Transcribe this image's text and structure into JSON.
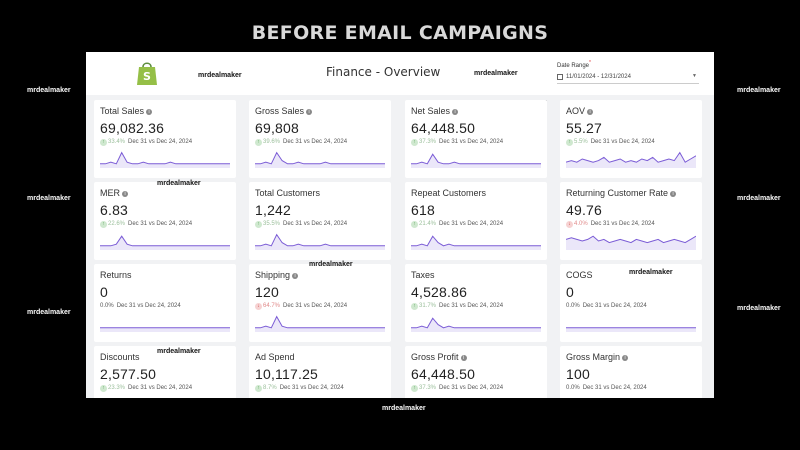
{
  "headline": "BEFORE EMAIL CAMPAIGNS",
  "watermark": "mrdealmaker",
  "dashboard": {
    "title": "Finance - Overview",
    "date_range_label": "Date Range",
    "date_range_required": "*",
    "date_range_value": "11/01/2024 - 12/31/2024",
    "logo_icon": "shopify-bag-icon",
    "accent_color": "#7b5cd6",
    "positive_color": "#4a9a4a",
    "negative_color": "#cc4444"
  },
  "comparison_text": "Dec 31 vs Dec 24, 2024",
  "metrics": [
    {
      "label": "Total Sales",
      "info": true,
      "value": "69,082.36",
      "change": "33.4%",
      "direction": "up",
      "spark": [
        2,
        2,
        3,
        2,
        9,
        3,
        2,
        2,
        3,
        2,
        2,
        2,
        2,
        3,
        2,
        2,
        2,
        2,
        2,
        2,
        2,
        2,
        2,
        2,
        2
      ]
    },
    {
      "label": "Gross Sales",
      "info": true,
      "value": "69,808",
      "change": "39.6%",
      "direction": "up",
      "spark": [
        2,
        2,
        3,
        2,
        9,
        4,
        2,
        2,
        3,
        2,
        2,
        2,
        2,
        3,
        2,
        2,
        2,
        2,
        2,
        2,
        2,
        2,
        2,
        2,
        2
      ]
    },
    {
      "label": "Net Sales",
      "info": true,
      "value": "64,448.50",
      "change": "37.3%",
      "direction": "up",
      "spark": [
        2,
        2,
        3,
        2,
        8,
        3,
        2,
        2,
        3,
        2,
        2,
        2,
        2,
        2,
        2,
        2,
        2,
        2,
        2,
        2,
        2,
        2,
        2,
        2,
        2
      ]
    },
    {
      "label": "AOV",
      "info": true,
      "value": "55.27",
      "change": "5.5%",
      "direction": "up",
      "spark": [
        3,
        4,
        3,
        5,
        4,
        3,
        4,
        6,
        3,
        4,
        5,
        3,
        4,
        3,
        5,
        4,
        6,
        3,
        4,
        5,
        4,
        9,
        3,
        5,
        7
      ]
    },
    {
      "label": "MER",
      "info": true,
      "value": "6.83",
      "change": "22.6%",
      "direction": "up",
      "spark": [
        2,
        2,
        2,
        3,
        8,
        3,
        2,
        2,
        2,
        2,
        2,
        2,
        2,
        2,
        2,
        2,
        2,
        2,
        2,
        2,
        2,
        2,
        2,
        2,
        2
      ]
    },
    {
      "label": "Total Customers",
      "info": false,
      "value": "1,242",
      "change": "35.5%",
      "direction": "up",
      "spark": [
        2,
        2,
        3,
        2,
        9,
        4,
        2,
        2,
        3,
        2,
        2,
        2,
        2,
        3,
        2,
        2,
        2,
        2,
        2,
        2,
        2,
        2,
        2,
        2,
        2
      ]
    },
    {
      "label": "Repeat Customers",
      "info": false,
      "value": "618",
      "change": "21.4%",
      "direction": "up",
      "spark": [
        2,
        2,
        3,
        2,
        8,
        4,
        2,
        3,
        2,
        2,
        2,
        2,
        2,
        2,
        2,
        2,
        2,
        2,
        2,
        2,
        2,
        2,
        2,
        2,
        2
      ]
    },
    {
      "label": "Returning Customer Rate",
      "info": true,
      "value": "49.76",
      "change": "4.0%",
      "direction": "down",
      "spark": [
        6,
        7,
        6,
        5,
        6,
        8,
        5,
        6,
        4,
        5,
        6,
        5,
        4,
        6,
        5,
        4,
        5,
        6,
        4,
        5,
        6,
        5,
        4,
        6,
        8
      ]
    },
    {
      "label": "Returns",
      "info": false,
      "value": "0",
      "change": "0.0%",
      "direction": "flat",
      "spark": [
        2,
        2,
        2,
        2,
        2,
        2,
        2,
        2,
        2,
        2,
        2,
        2,
        2,
        2,
        2,
        2,
        2,
        2,
        2,
        2,
        2,
        2,
        2,
        2,
        2
      ]
    },
    {
      "label": "Shipping",
      "info": true,
      "value": "120",
      "change": "64.7%",
      "direction": "down",
      "spark": [
        2,
        2,
        3,
        2,
        9,
        3,
        2,
        2,
        2,
        2,
        2,
        2,
        2,
        2,
        2,
        2,
        2,
        2,
        2,
        2,
        2,
        2,
        2,
        2,
        2
      ]
    },
    {
      "label": "Taxes",
      "info": false,
      "value": "4,528.86",
      "change": "31.7%",
      "direction": "up",
      "spark": [
        2,
        2,
        3,
        2,
        8,
        4,
        2,
        3,
        2,
        2,
        2,
        2,
        2,
        2,
        2,
        2,
        2,
        2,
        2,
        2,
        2,
        2,
        2,
        2,
        2
      ]
    },
    {
      "label": "COGS",
      "info": false,
      "value": "0",
      "change": "0.0%",
      "direction": "flat",
      "spark": [
        2,
        2,
        2,
        2,
        2,
        2,
        2,
        2,
        2,
        2,
        2,
        2,
        2,
        2,
        2,
        2,
        2,
        2,
        2,
        2,
        2,
        2,
        2,
        2,
        2
      ]
    },
    {
      "label": "Discounts",
      "info": false,
      "value": "2,577.50",
      "change": "23.3%",
      "direction": "up",
      "spark": []
    },
    {
      "label": "Ad Spend",
      "info": false,
      "value": "10,117.25",
      "change": "8.7%",
      "direction": "up",
      "spark": []
    },
    {
      "label": "Gross Profit",
      "info": true,
      "value": "64,448.50",
      "change": "37.3%",
      "direction": "up",
      "spark": []
    },
    {
      "label": "Gross Margin",
      "info": true,
      "value": "100",
      "change": "0.0%",
      "direction": "flat",
      "spark": []
    }
  ]
}
